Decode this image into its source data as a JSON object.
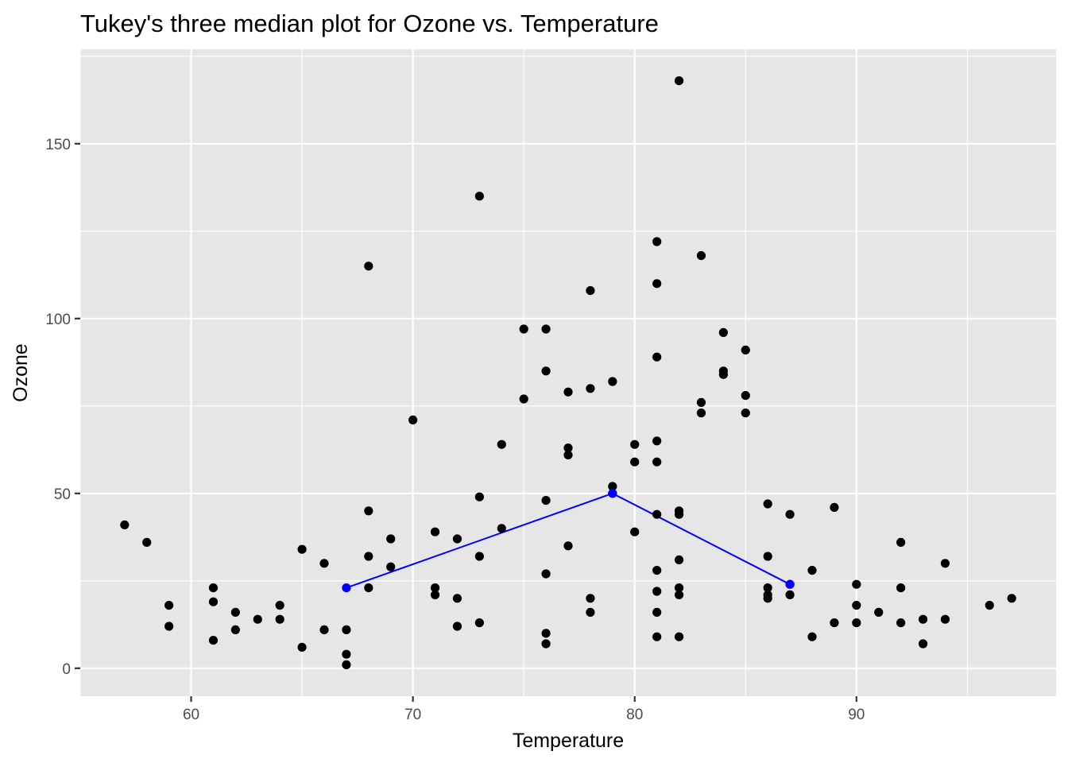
{
  "chart_data": {
    "type": "scatter",
    "title": "Tukey's three median plot for Ozone vs. Temperature",
    "xlabel": "Temperature",
    "ylabel": "Ozone",
    "xlim": [
      55,
      99
    ],
    "ylim": [
      -8,
      177
    ],
    "xticks": [
      60,
      70,
      80,
      90
    ],
    "xtick_labels": [
      "60",
      "70",
      "80",
      "90"
    ],
    "yticks": [
      0,
      50,
      100,
      150
    ],
    "ytick_labels": [
      "0",
      "50",
      "100",
      "150"
    ],
    "grid": true,
    "panel_color": "#e6e6e6",
    "grid_color": "#ffffff",
    "point_color": "#000000",
    "line_color": "#0000ff",
    "points": [
      [
        57,
        41
      ],
      [
        58,
        36
      ],
      [
        59,
        18
      ],
      [
        59,
        12
      ],
      [
        61,
        23
      ],
      [
        61,
        19
      ],
      [
        61,
        8
      ],
      [
        62,
        16
      ],
      [
        62,
        11
      ],
      [
        63,
        14
      ],
      [
        64,
        18
      ],
      [
        64,
        14
      ],
      [
        65,
        34
      ],
      [
        65,
        6
      ],
      [
        66,
        30
      ],
      [
        66,
        11
      ],
      [
        67,
        11
      ],
      [
        67,
        4
      ],
      [
        67,
        1
      ],
      [
        68,
        115
      ],
      [
        68,
        45
      ],
      [
        68,
        32
      ],
      [
        68,
        23
      ],
      [
        69,
        37
      ],
      [
        69,
        29
      ],
      [
        70,
        71
      ],
      [
        71,
        39
      ],
      [
        71,
        23
      ],
      [
        71,
        21
      ],
      [
        72,
        37
      ],
      [
        72,
        20
      ],
      [
        72,
        12
      ],
      [
        73,
        135
      ],
      [
        73,
        49
      ],
      [
        73,
        32
      ],
      [
        73,
        13
      ],
      [
        74,
        64
      ],
      [
        74,
        40
      ],
      [
        75,
        97
      ],
      [
        75,
        77
      ],
      [
        76,
        97
      ],
      [
        76,
        85
      ],
      [
        76,
        48
      ],
      [
        76,
        27
      ],
      [
        76,
        10
      ],
      [
        76,
        7
      ],
      [
        77,
        79
      ],
      [
        77,
        63
      ],
      [
        77,
        61
      ],
      [
        77,
        35
      ],
      [
        78,
        108
      ],
      [
        78,
        80
      ],
      [
        78,
        20
      ],
      [
        78,
        16
      ],
      [
        79,
        82
      ],
      [
        79,
        52
      ],
      [
        79,
        50
      ],
      [
        80,
        64
      ],
      [
        80,
        59
      ],
      [
        80,
        39
      ],
      [
        81,
        122
      ],
      [
        81,
        110
      ],
      [
        81,
        89
      ],
      [
        81,
        65
      ],
      [
        81,
        59
      ],
      [
        81,
        44
      ],
      [
        81,
        28
      ],
      [
        81,
        22
      ],
      [
        81,
        16
      ],
      [
        81,
        9
      ],
      [
        82,
        168
      ],
      [
        82,
        45
      ],
      [
        82,
        44
      ],
      [
        82,
        31
      ],
      [
        82,
        23
      ],
      [
        82,
        21
      ],
      [
        82,
        9
      ],
      [
        83,
        118
      ],
      [
        83,
        76
      ],
      [
        83,
        73
      ],
      [
        84,
        96
      ],
      [
        84,
        85
      ],
      [
        84,
        84
      ],
      [
        85,
        91
      ],
      [
        85,
        78
      ],
      [
        85,
        73
      ],
      [
        86,
        47
      ],
      [
        86,
        32
      ],
      [
        86,
        23
      ],
      [
        86,
        21
      ],
      [
        86,
        20
      ],
      [
        87,
        44
      ],
      [
        87,
        24
      ],
      [
        87,
        21
      ],
      [
        88,
        28
      ],
      [
        88,
        9
      ],
      [
        89,
        46
      ],
      [
        89,
        13
      ],
      [
        90,
        24
      ],
      [
        90,
        18
      ],
      [
        90,
        13
      ],
      [
        91,
        16
      ],
      [
        92,
        36
      ],
      [
        92,
        23
      ],
      [
        92,
        13
      ],
      [
        93,
        14
      ],
      [
        93,
        7
      ],
      [
        94,
        30
      ],
      [
        94,
        14
      ],
      [
        96,
        18
      ],
      [
        97,
        20
      ]
    ],
    "median_line": [
      [
        67,
        23
      ],
      [
        79,
        50
      ],
      [
        87,
        24
      ]
    ]
  }
}
